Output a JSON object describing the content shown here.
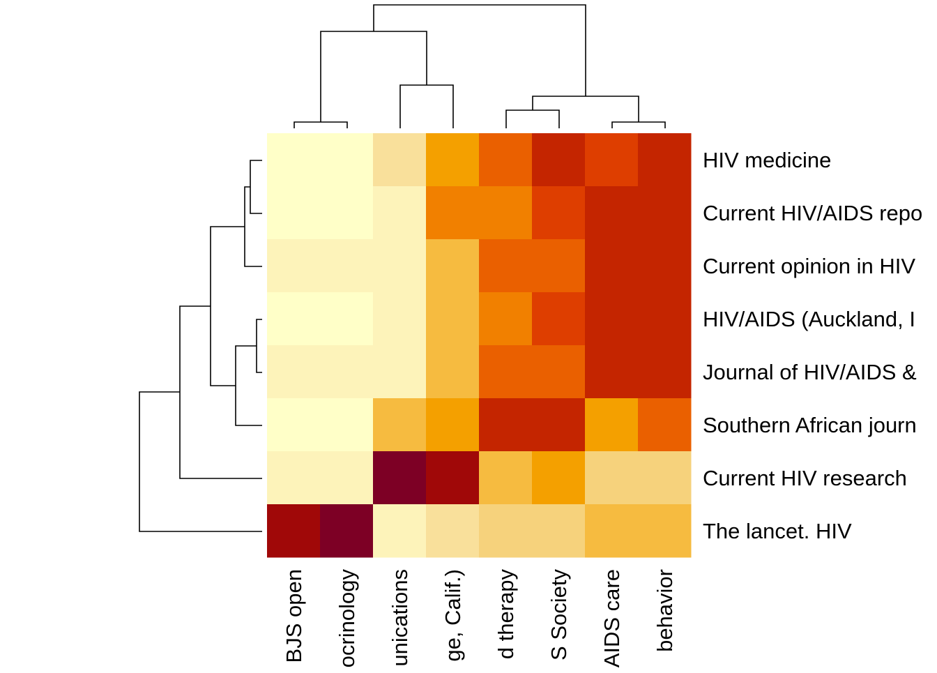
{
  "chart_data": {
    "type": "heatmap",
    "title": "",
    "xlabel": "",
    "ylabel": "",
    "row_labels": [
      "HIV medicine",
      "Current HIV/AIDS repo",
      "Current opinion in HIV",
      "HIV/AIDS (Auckland, I",
      "Journal of HIV/AIDS &",
      "Southern African journ",
      "Current HIV research",
      "The lancet. HIV"
    ],
    "col_labels": [
      "BJS open",
      "ocrinology",
      "unications",
      "ge, Calif.)",
      "d therapy",
      "S Society",
      "AIDS care",
      "behavior"
    ],
    "values": [
      [
        1,
        1,
        3,
        6,
        8,
        10,
        9,
        10
      ],
      [
        1,
        1,
        2,
        7,
        7,
        9,
        10,
        10
      ],
      [
        2,
        2,
        2,
        5,
        8,
        8,
        10,
        10
      ],
      [
        1,
        1,
        2,
        5,
        7,
        9,
        10,
        10
      ],
      [
        2,
        2,
        2,
        5,
        8,
        8,
        10,
        10
      ],
      [
        1,
        1,
        5,
        6,
        10,
        10,
        6,
        8
      ],
      [
        2,
        2,
        12,
        11,
        5,
        6,
        4,
        4
      ],
      [
        11,
        12,
        2,
        3,
        4,
        4,
        5,
        5
      ]
    ],
    "color_scale": {
      "1": "#FFFFC8",
      "2": "#FDF3BA",
      "3": "#F9E09B",
      "4": "#F6D27C",
      "5": "#F6BB40",
      "6": "#F4A000",
      "7": "#F18000",
      "8": "#EA6000",
      "9": "#DE3E00",
      "10": "#C42500",
      "11": "#A00808",
      "12": "#7D0025"
    },
    "legend": "none",
    "grid": false,
    "dendrograms": {
      "rows": "left",
      "columns": "top"
    }
  }
}
